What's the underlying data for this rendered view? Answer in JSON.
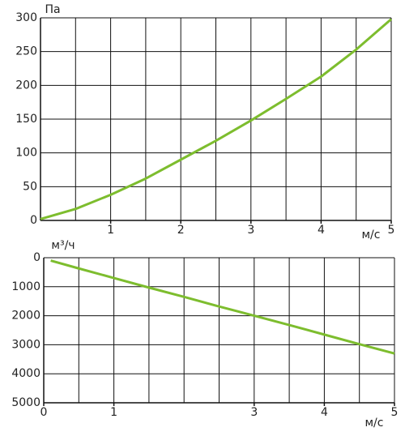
{
  "chart_data": [
    {
      "type": "line",
      "y_label": "Па",
      "x_label": "м/с",
      "x": [
        0,
        0.5,
        1,
        1.5,
        2,
        2.5,
        3,
        3.5,
        4,
        4.5,
        5
      ],
      "series": [
        {
          "color": "#7dbd2e",
          "values": [
            2,
            17,
            38,
            62,
            90,
            118,
            148,
            180,
            213,
            253,
            298
          ]
        }
      ],
      "xlim": [
        0,
        5
      ],
      "xticks": [
        1,
        2,
        3,
        4,
        5
      ],
      "xgrid": [
        0.5,
        1,
        1.5,
        2,
        2.5,
        3,
        3.5,
        4,
        4.5,
        5
      ],
      "ylim": [
        0,
        300
      ],
      "yticks": [
        0,
        50,
        100,
        150,
        200,
        250,
        300
      ],
      "grid": true
    },
    {
      "type": "line",
      "y_label": "м³/ч",
      "x_label": "м/с",
      "x": [
        0.1,
        0.5,
        1,
        1.5,
        2,
        2.5,
        3,
        3.5,
        4,
        4.5,
        5
      ],
      "series": [
        {
          "color": "#7dbd2e",
          "values": [
            100,
            370,
            700,
            1030,
            1350,
            1680,
            2000,
            2320,
            2650,
            2980,
            3300
          ]
        }
      ],
      "xlim": [
        0,
        5
      ],
      "xticks": [
        0,
        1,
        3,
        4,
        5
      ],
      "xgrid": [
        0.5,
        1,
        1.5,
        2,
        2.5,
        3,
        3.5,
        4,
        4.5,
        5
      ],
      "ylim": [
        5000,
        0
      ],
      "yticks": [
        0,
        1000,
        2000,
        3000,
        4000,
        5000
      ],
      "grid": true
    }
  ]
}
